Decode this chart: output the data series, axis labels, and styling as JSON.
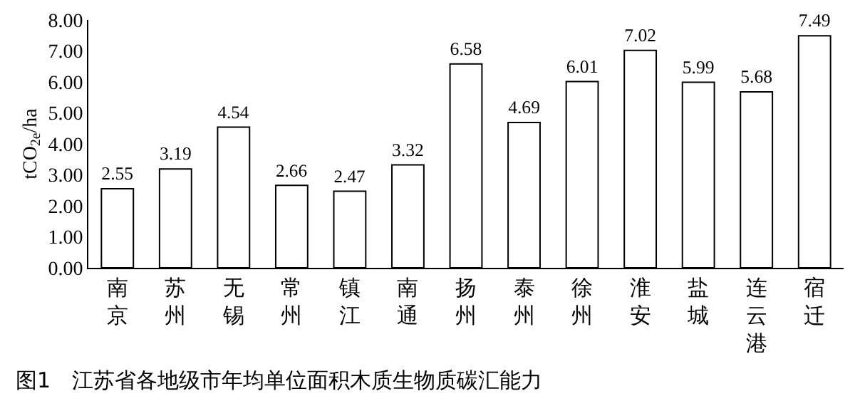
{
  "chart_data": {
    "type": "bar",
    "title": "图1　江苏省各地级市年均单位面积木质生物质碳汇能力",
    "ylabel": "tCO$_{2e}$/ha",
    "categories": [
      "南京",
      "苏州",
      "无锡",
      "常州",
      "镇江",
      "南通",
      "扬州",
      "泰州",
      "徐州",
      "淮安",
      "盐城",
      "连云港",
      "宿迁"
    ],
    "values": [
      2.55,
      3.19,
      4.54,
      2.66,
      2.47,
      3.32,
      6.58,
      4.69,
      6.01,
      7.02,
      5.99,
      5.68,
      7.49
    ],
    "color": "#ffffff",
    "ylim": [
      0,
      8
    ],
    "yticks": [
      {
        "value": 0,
        "label": "0.00"
      },
      {
        "value": 1,
        "label": "1.00"
      },
      {
        "value": 2,
        "label": "2.00"
      },
      {
        "value": 3,
        "label": "3.00"
      },
      {
        "value": 4,
        "label": "4.00"
      },
      {
        "value": 5,
        "label": "5.00"
      },
      {
        "value": 6,
        "label": "6.00"
      },
      {
        "value": 7,
        "label": "7.00"
      },
      {
        "value": 8,
        "label": "8.00"
      }
    ],
    "data_labels": true
  }
}
